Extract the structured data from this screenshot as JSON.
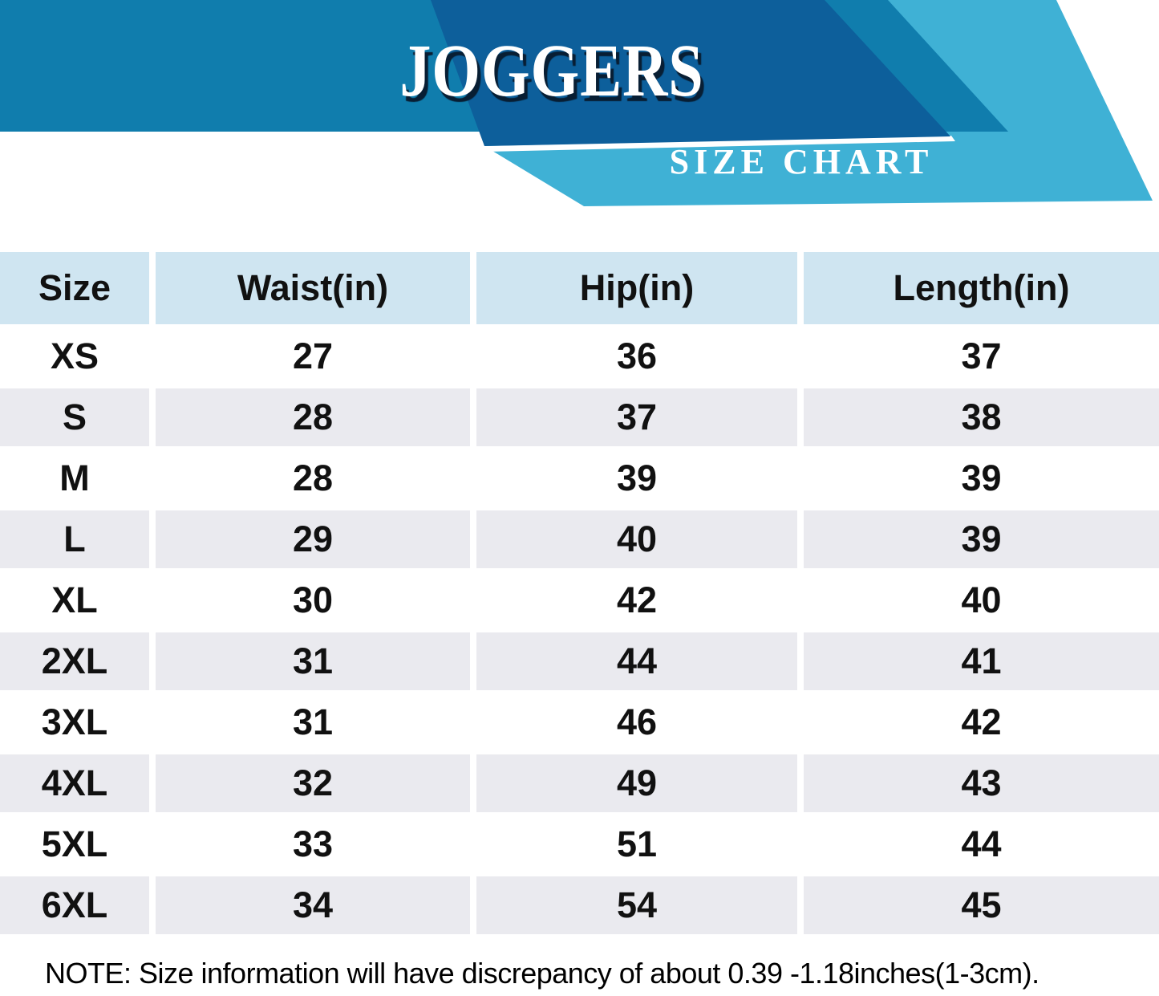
{
  "banner": {
    "title": "JOGGERS",
    "subtitle": "SIZE CHART"
  },
  "colors": {
    "band-blue": "#107dad",
    "dark-blue": "#0d5f9b",
    "cyan": "#3fb1d5",
    "title-text": "#ffffff",
    "title-shadow": "#081e33",
    "header-cell-bg": "#cfe5f1",
    "alt-row-bg": "#eaeaef",
    "row-bg": "#ffffff",
    "table-text": "#111111"
  },
  "chart_data": {
    "type": "table",
    "title": "JOGGERS",
    "subtitle": "SIZE CHART",
    "columns": [
      "Size",
      "Waist(in)",
      "Hip(in)",
      "Length(in)"
    ],
    "rows": [
      [
        "XS",
        "27",
        "36",
        "37"
      ],
      [
        "S",
        "28",
        "37",
        "38"
      ],
      [
        "M",
        "28",
        "39",
        "39"
      ],
      [
        "L",
        "29",
        "40",
        "39"
      ],
      [
        "XL",
        "30",
        "42",
        "40"
      ],
      [
        "2XL",
        "31",
        "44",
        "41"
      ],
      [
        "3XL",
        "31",
        "46",
        "42"
      ],
      [
        "4XL",
        "32",
        "49",
        "43"
      ],
      [
        "5XL",
        "33",
        "51",
        "44"
      ],
      [
        "6XL",
        "34",
        "54",
        "45"
      ]
    ],
    "layout": {
      "alternating_rows": true,
      "header_position": "top"
    }
  },
  "note": "NOTE: Size information will have discrepancy of about 0.39 -1.18inches(1-3cm)."
}
